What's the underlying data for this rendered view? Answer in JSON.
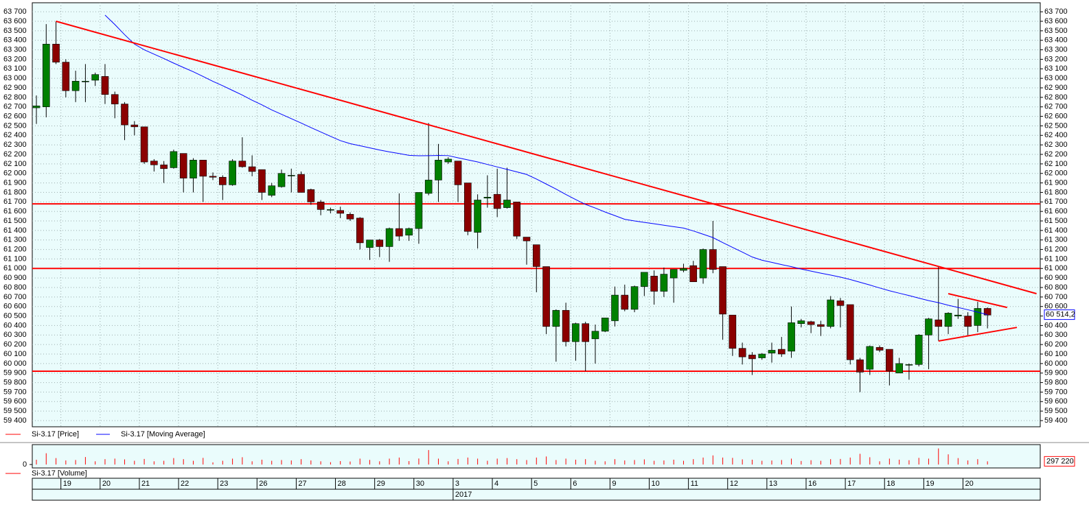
{
  "chart_data": [
    {
      "type": "candlestick",
      "grid": true,
      "categories": [
        null,
        null,
        null,
        "19",
        null,
        null,
        null,
        "20",
        null,
        null,
        null,
        "21",
        null,
        null,
        null,
        "22",
        null,
        null,
        null,
        "23",
        null,
        null,
        null,
        "26",
        null,
        null,
        null,
        "27",
        null,
        null,
        null,
        "28",
        null,
        null,
        null,
        "29",
        null,
        null,
        null,
        "30",
        null,
        null,
        null,
        "3",
        null,
        null,
        null,
        "4",
        null,
        null,
        null,
        "5",
        null,
        null,
        null,
        "6",
        null,
        null,
        null,
        "9",
        null,
        null,
        null,
        "10",
        null,
        null,
        null,
        "11",
        null,
        null,
        null,
        "12",
        null,
        null,
        null,
        "13",
        null,
        null,
        null,
        "16",
        null,
        null,
        null,
        "17",
        null,
        null,
        null,
        "18",
        null,
        null,
        null,
        "19",
        null,
        null,
        null,
        "20",
        null,
        null
      ],
      "year": "2017",
      "ylim": [
        59335,
        63795
      ],
      "yticks": [
        {
          "value": 59400,
          "label": "59 400"
        },
        {
          "value": 59500,
          "label": "59 500"
        },
        {
          "value": 59600,
          "label": "59 600"
        },
        {
          "value": 59700,
          "label": "59 700"
        },
        {
          "value": 59800,
          "label": "59 800"
        },
        {
          "value": 59900,
          "label": "59 900"
        },
        {
          "value": 60000,
          "label": "60 000"
        },
        {
          "value": 60100,
          "label": "60 100"
        },
        {
          "value": 60200,
          "label": "60 200"
        },
        {
          "value": 60300,
          "label": "60 300"
        },
        {
          "value": 60400,
          "label": "60 400"
        },
        {
          "value": 60500,
          "label": "60 500"
        },
        {
          "value": 60600,
          "label": "60 600"
        },
        {
          "value": 60700,
          "label": "60 700"
        },
        {
          "value": 60800,
          "label": "60 800"
        },
        {
          "value": 60900,
          "label": "60 900"
        },
        {
          "value": 61000,
          "label": "61 000"
        },
        {
          "value": 61100,
          "label": "61 100"
        },
        {
          "value": 61200,
          "label": "61 200"
        },
        {
          "value": 61300,
          "label": "61 300"
        },
        {
          "value": 61400,
          "label": "61 400"
        },
        {
          "value": 61500,
          "label": "61 500"
        },
        {
          "value": 61600,
          "label": "61 600"
        },
        {
          "value": 61700,
          "label": "61 700"
        },
        {
          "value": 61800,
          "label": "61 800"
        },
        {
          "value": 61900,
          "label": "61 900"
        },
        {
          "value": 62000,
          "label": "62 000"
        },
        {
          "value": 62100,
          "label": "62 100"
        },
        {
          "value": 62200,
          "label": "62 200"
        },
        {
          "value": 62300,
          "label": "62 300"
        },
        {
          "value": 62400,
          "label": "62 400"
        },
        {
          "value": 62500,
          "label": "62 500"
        },
        {
          "value": 62600,
          "label": "62 600"
        },
        {
          "value": 62700,
          "label": "62 700"
        },
        {
          "value": 62800,
          "label": "62 800"
        },
        {
          "value": 62900,
          "label": "62 900"
        },
        {
          "value": 63000,
          "label": "63 000"
        },
        {
          "value": 63100,
          "label": "63 100"
        },
        {
          "value": 63200,
          "label": "63 200"
        },
        {
          "value": 63300,
          "label": "63 300"
        },
        {
          "value": 63400,
          "label": "63 400"
        },
        {
          "value": 63500,
          "label": "63 500"
        },
        {
          "value": 63600,
          "label": "63 600"
        },
        {
          "value": 63700,
          "label": "63 700"
        }
      ],
      "series": [
        {
          "name": "Si-3.17 [Price]",
          "color": "#ff0000",
          "up_color": "#008000",
          "down_color": "#8b0000",
          "open": [
            62690,
            62700,
            63360,
            63170,
            62870,
            62970,
            62980,
            63020,
            62830,
            62730,
            62510,
            62490,
            62130,
            62090,
            62060,
            62210,
            61950,
            62140,
            61970,
            61960,
            61880,
            62130,
            62070,
            62040,
            61770,
            61860,
            61980,
            61990,
            61830,
            61700,
            61620,
            61610,
            61570,
            61530,
            61220,
            61300,
            61230,
            61420,
            61350,
            61420,
            61790,
            61930,
            62120,
            62130,
            61900,
            61380,
            61740,
            61780,
            61640,
            61700,
            61330,
            61250,
            61020,
            60390,
            60560,
            60230,
            60420,
            60260,
            60340,
            60450,
            60720,
            60570,
            60810,
            60920,
            60760,
            60900,
            60980,
            61030,
            60900,
            61200,
            61020,
            60510,
            60160,
            60090,
            60060,
            60110,
            60150,
            60130,
            60420,
            60440,
            60410,
            60390,
            60660,
            60620,
            60040,
            59940,
            60170,
            60150,
            59900,
            59990,
            59990,
            60300,
            60460,
            60390,
            60500,
            60500,
            60400,
            60580
          ],
          "high": [
            62820,
            63570,
            63600,
            63200,
            63080,
            63150,
            63060,
            63150,
            62860,
            62750,
            62550,
            62490,
            62150,
            62130,
            62250,
            62210,
            62160,
            62140,
            62010,
            61980,
            62150,
            62380,
            62190,
            62040,
            61900,
            62040,
            62050,
            62020,
            61840,
            61720,
            61640,
            61650,
            61590,
            61540,
            61300,
            61310,
            61430,
            61790,
            61430,
            61800,
            62530,
            62310,
            62170,
            62130,
            61900,
            61780,
            61980,
            62050,
            62060,
            61700,
            61330,
            61250,
            61020,
            60570,
            60640,
            60430,
            60440,
            60410,
            60480,
            60810,
            60830,
            60820,
            60960,
            60980,
            61010,
            60990,
            61050,
            61080,
            61210,
            61500,
            61020,
            60510,
            60220,
            60120,
            60110,
            60220,
            60280,
            60600,
            60470,
            60450,
            60450,
            60710,
            60690,
            60620,
            60060,
            60190,
            60190,
            60150,
            60060,
            60000,
            60310,
            60480,
            61020,
            60540,
            60680,
            60540,
            60650,
            60590
          ],
          "low": [
            62520,
            62590,
            63150,
            62800,
            62750,
            62750,
            62920,
            62730,
            62580,
            62350,
            62400,
            62100,
            62020,
            61900,
            62050,
            61800,
            61800,
            61700,
            61930,
            61720,
            61870,
            62060,
            61970,
            61720,
            61750,
            61850,
            61800,
            61800,
            61670,
            61560,
            61580,
            61530,
            61500,
            61200,
            61090,
            61120,
            61070,
            61290,
            61290,
            61260,
            61770,
            61700,
            62100,
            61700,
            61350,
            61210,
            61640,
            61540,
            61630,
            61310,
            61040,
            60750,
            60310,
            60020,
            60180,
            60030,
            59920,
            60000,
            60330,
            60390,
            60550,
            60540,
            60710,
            60620,
            60700,
            60640,
            60960,
            60860,
            60840,
            60950,
            60250,
            60080,
            59990,
            59880,
            60040,
            60010,
            60070,
            60060,
            60380,
            60320,
            60290,
            60370,
            60380,
            59990,
            59700,
            59880,
            60120,
            59770,
            59900,
            59830,
            59970,
            59940,
            60240,
            60310,
            60470,
            60290,
            60330,
            60370
          ],
          "close": [
            62710,
            63360,
            63170,
            62870,
            62970,
            62970,
            63040,
            62830,
            62730,
            62510,
            62490,
            62120,
            62090,
            62050,
            62230,
            61950,
            62140,
            61970,
            61960,
            61880,
            62130,
            62070,
            62020,
            61800,
            61870,
            62000,
            61980,
            61800,
            61700,
            61620,
            61620,
            61580,
            61520,
            61270,
            61300,
            61230,
            61420,
            61340,
            61420,
            61800,
            61930,
            62140,
            62150,
            61880,
            61390,
            61720,
            61750,
            61630,
            61720,
            61340,
            61290,
            61020,
            60390,
            60560,
            60230,
            60420,
            60230,
            60340,
            60480,
            60720,
            60570,
            60810,
            60960,
            60760,
            60940,
            60990,
            61000,
            60860,
            61200,
            60990,
            60520,
            60160,
            60070,
            60050,
            60100,
            60140,
            60100,
            60430,
            60450,
            60410,
            60390,
            60670,
            60610,
            60040,
            59910,
            60180,
            60140,
            59920,
            60000,
            59990,
            60300,
            60470,
            60390,
            60530,
            60510,
            60390,
            60580,
            60510
          ]
        },
        {
          "type": "line",
          "name": "Si-3.17 [Moving Average]",
          "color": "#0000ff",
          "last_value_label": "60 514,2",
          "values": [
            null,
            null,
            null,
            null,
            null,
            null,
            null,
            63665,
            63566,
            63459,
            63360,
            63300,
            63254,
            63208,
            63160,
            63114,
            63069,
            63020,
            62968,
            62922,
            62873,
            62824,
            62770,
            62721,
            62668,
            62622,
            62576,
            62530,
            62482,
            62436,
            62390,
            62345,
            62313,
            62291,
            62269,
            62246,
            62226,
            62209,
            62190,
            62186,
            62187,
            62189,
            62187,
            62164,
            62142,
            62121,
            62094,
            62068,
            62042,
            62016,
            61989,
            61941,
            61888,
            61835,
            61778,
            61725,
            61674,
            61636,
            61594,
            61556,
            61517,
            61500,
            61485,
            61470,
            61455,
            61440,
            61425,
            61395,
            61360,
            61325,
            61272,
            61222,
            61172,
            61121,
            61087,
            61064,
            61041,
            61019,
            60994,
            60972,
            60951,
            60931,
            60909,
            60884,
            60855,
            60826,
            60795,
            60766,
            60740,
            60715,
            60688,
            60662,
            60640,
            60613,
            60590,
            60566,
            60541,
            60514.2
          ]
        }
      ],
      "line_color": "#ff0000",
      "trendlines": [
        {
          "from_index": 2,
          "from": 63600,
          "to_index": 102,
          "to": 60735
        },
        {
          "from_index": 93,
          "from": 60735,
          "to_index": 99,
          "to": 60590
        },
        {
          "from_index": 92,
          "from": 60237,
          "to_index": 100,
          "to": 60380
        }
      ],
      "hlines": [
        61680,
        61000,
        59920
      ]
    },
    {
      "type": "bar",
      "ylim": [
        0,
        1600000
      ],
      "yticks": [
        0
      ],
      "series": [
        {
          "name": "Si-3.17 [Volume]",
          "color": "#ff0000",
          "last_value_label": "297 220",
          "values": [
            450000,
            1050000,
            600000,
            380000,
            420000,
            700000,
            300000,
            500000,
            550000,
            480000,
            350000,
            520000,
            300000,
            350000,
            600000,
            500000,
            350000,
            620000,
            200000,
            350000,
            550000,
            680000,
            300000,
            450000,
            350000,
            420000,
            380000,
            500000,
            380000,
            300000,
            220000,
            320000,
            280000,
            550000,
            430000,
            300000,
            550000,
            650000,
            320000,
            560000,
            1350000,
            550000,
            300000,
            520000,
            650000,
            550000,
            350000,
            550000,
            600000,
            500000,
            420000,
            650000,
            750000,
            420000,
            550000,
            450000,
            500000,
            350000,
            300000,
            500000,
            380000,
            420000,
            480000,
            350000,
            380000,
            450000,
            350000,
            500000,
            650000,
            850000,
            650000,
            620000,
            480000,
            450000,
            350000,
            380000,
            420000,
            550000,
            330000,
            400000,
            350000,
            500000,
            520000,
            650000,
            1000000,
            680000,
            300000,
            550000,
            450000,
            400000,
            620000,
            550000,
            1500000,
            950000,
            600000,
            380000,
            500000,
            297220
          ]
        }
      ]
    }
  ]
}
